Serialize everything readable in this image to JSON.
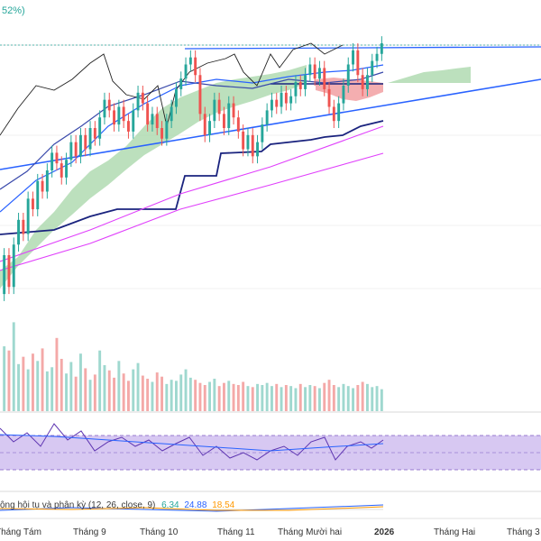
{
  "header": {
    "change_text": "52%)"
  },
  "colors": {
    "up": "#26a69a",
    "down": "#ef5350",
    "up_vol": "#9fd8cf",
    "down_vol": "#f4a9a8",
    "cloud_green": "#a5d6a7",
    "cloud_red": "#f19a9c",
    "trend_blue": "#2962ff",
    "dark_navy": "#1a237e",
    "magenta": "#e040fb",
    "rsi_band": "#c9b6ee"
  },
  "chart_data": {
    "type": "candlestick",
    "title": "",
    "time_axis": [
      "Tháng Tám",
      "Tháng 9",
      "Tháng 10",
      "Tháng 11",
      "Tháng Mười hai",
      "2026",
      "Tháng Hai",
      "Tháng 3"
    ],
    "grid": true,
    "panes": [
      "price",
      "volume",
      "rsi",
      "macd"
    ],
    "macd": {
      "label": "ộng hội tụ và phân kỳ (12, 26, close, 9)",
      "values": [
        "6.34",
        "24.88",
        "18.54"
      ]
    },
    "candles": [
      {
        "o": 0.31,
        "c": 0.42
      },
      {
        "o": 0.42,
        "c": 0.33
      },
      {
        "o": 0.33,
        "c": 0.45
      },
      {
        "o": 0.45,
        "c": 0.52
      },
      {
        "o": 0.52,
        "c": 0.48
      },
      {
        "o": 0.48,
        "c": 0.58
      },
      {
        "o": 0.58,
        "c": 0.55
      },
      {
        "o": 0.55,
        "c": 0.63
      },
      {
        "o": 0.63,
        "c": 0.6
      },
      {
        "o": 0.6,
        "c": 0.66
      },
      {
        "o": 0.66,
        "c": 0.71
      },
      {
        "o": 0.71,
        "c": 0.68
      },
      {
        "o": 0.68,
        "c": 0.64
      },
      {
        "o": 0.64,
        "c": 0.69
      },
      {
        "o": 0.69,
        "c": 0.74
      },
      {
        "o": 0.74,
        "c": 0.7
      },
      {
        "o": 0.7,
        "c": 0.76
      },
      {
        "o": 0.76,
        "c": 0.72
      },
      {
        "o": 0.72,
        "c": 0.78
      },
      {
        "o": 0.78,
        "c": 0.75
      },
      {
        "o": 0.75,
        "c": 0.81
      },
      {
        "o": 0.81,
        "c": 0.86
      },
      {
        "o": 0.86,
        "c": 0.83
      },
      {
        "o": 0.83,
        "c": 0.79
      },
      {
        "o": 0.79,
        "c": 0.84
      },
      {
        "o": 0.84,
        "c": 0.8
      },
      {
        "o": 0.8,
        "c": 0.77
      },
      {
        "o": 0.77,
        "c": 0.83
      },
      {
        "o": 0.83,
        "c": 0.88
      },
      {
        "o": 0.88,
        "c": 0.85
      },
      {
        "o": 0.85,
        "c": 0.79
      },
      {
        "o": 0.79,
        "c": 0.82
      },
      {
        "o": 0.82,
        "c": 0.78
      },
      {
        "o": 0.78,
        "c": 0.75
      },
      {
        "o": 0.75,
        "c": 0.8
      },
      {
        "o": 0.8,
        "c": 0.84
      },
      {
        "o": 0.84,
        "c": 0.89
      },
      {
        "o": 0.89,
        "c": 0.92
      },
      {
        "o": 0.92,
        "c": 0.96
      },
      {
        "o": 0.96,
        "c": 0.98
      },
      {
        "o": 0.98,
        "c": 0.93
      },
      {
        "o": 0.93,
        "c": 0.82
      },
      {
        "o": 0.82,
        "c": 0.76
      },
      {
        "o": 0.76,
        "c": 0.8
      },
      {
        "o": 0.8,
        "c": 0.86
      },
      {
        "o": 0.86,
        "c": 0.82
      },
      {
        "o": 0.82,
        "c": 0.78
      },
      {
        "o": 0.78,
        "c": 0.85
      },
      {
        "o": 0.85,
        "c": 0.81
      },
      {
        "o": 0.81,
        "c": 0.77
      },
      {
        "o": 0.77,
        "c": 0.72
      },
      {
        "o": 0.72,
        "c": 0.76
      },
      {
        "o": 0.76,
        "c": 0.7
      },
      {
        "o": 0.7,
        "c": 0.74
      },
      {
        "o": 0.74,
        "c": 0.79
      },
      {
        "o": 0.79,
        "c": 0.83
      },
      {
        "o": 0.83,
        "c": 0.86
      },
      {
        "o": 0.86,
        "c": 0.84
      },
      {
        "o": 0.84,
        "c": 0.88
      },
      {
        "o": 0.88,
        "c": 0.85
      },
      {
        "o": 0.85,
        "c": 0.87
      },
      {
        "o": 0.87,
        "c": 0.91
      },
      {
        "o": 0.91,
        "c": 0.89
      },
      {
        "o": 0.89,
        "c": 0.93
      },
      {
        "o": 0.93,
        "c": 0.96
      },
      {
        "o": 0.96,
        "c": 0.92
      },
      {
        "o": 0.92,
        "c": 0.95
      },
      {
        "o": 0.95,
        "c": 0.89
      },
      {
        "o": 0.89,
        "c": 0.84
      },
      {
        "o": 0.84,
        "c": 0.8
      },
      {
        "o": 0.8,
        "c": 0.85
      },
      {
        "o": 0.85,
        "c": 0.9
      },
      {
        "o": 0.9,
        "c": 0.96
      },
      {
        "o": 0.96,
        "c": 1.0
      },
      {
        "o": 1.0,
        "c": 0.93
      },
      {
        "o": 0.93,
        "c": 0.89
      },
      {
        "o": 0.89,
        "c": 0.93
      },
      {
        "o": 0.93,
        "c": 0.97
      },
      {
        "o": 0.97,
        "c": 0.99
      },
      {
        "o": 0.99,
        "c": 1.02
      }
    ],
    "volume": [
      0.62,
      0.58,
      0.85,
      0.45,
      0.52,
      0.4,
      0.55,
      0.48,
      0.6,
      0.38,
      0.42,
      0.7,
      0.5,
      0.36,
      0.47,
      0.33,
      0.55,
      0.41,
      0.3,
      0.35,
      0.58,
      0.44,
      0.39,
      0.32,
      0.48,
      0.36,
      0.29,
      0.4,
      0.46,
      0.34,
      0.31,
      0.28,
      0.37,
      0.33,
      0.26,
      0.3,
      0.29,
      0.35,
      0.4,
      0.32,
      0.3,
      0.27,
      0.25,
      0.28,
      0.31,
      0.24,
      0.27,
      0.29,
      0.26,
      0.25,
      0.28,
      0.24,
      0.23,
      0.26,
      0.25,
      0.27,
      0.24,
      0.26,
      0.23,
      0.25,
      0.24,
      0.22,
      0.26,
      0.23,
      0.25,
      0.24,
      0.22,
      0.27,
      0.3,
      0.25,
      0.23,
      0.26,
      0.24,
      0.22,
      0.25,
      0.28,
      0.26,
      0.23,
      0.24,
      0.21
    ]
  }
}
